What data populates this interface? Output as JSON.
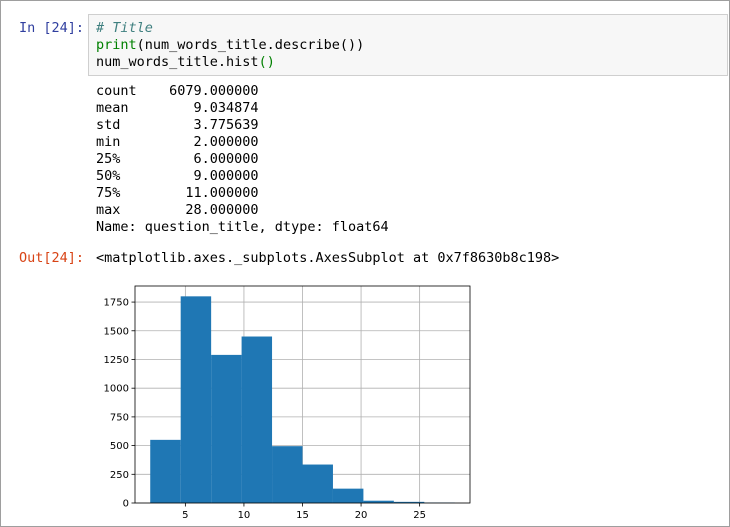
{
  "cell": {
    "prompt_in": "In [24]:",
    "code": [
      [
        "# Title"
      ],
      [
        "print",
        "(num_words_title.describe())"
      ],
      [
        "num_words_title.hist",
        "()"
      ]
    ],
    "output": [
      "count    6079.000000",
      "mean        9.034874",
      "std         3.775639",
      "min         2.000000",
      "25%         6.000000",
      "50%         9.000000",
      "75%        11.000000",
      "max        28.000000",
      "Name: question_title, dtype: float64"
    ],
    "prompt_out": "Out[24]:",
    "out_repr": "<matplotlib.axes._subplots.AxesSubplot at 0x7f8630b8c198>"
  },
  "chart_data": {
    "type": "histogram",
    "bins": [
      2,
      4.6,
      7.2,
      9.8,
      12.4,
      15,
      17.6,
      20.2,
      22.8,
      25.4,
      28
    ],
    "values": [
      550,
      1800,
      1290,
      1450,
      495,
      335,
      125,
      20,
      10,
      4
    ],
    "color": "#1f77b4",
    "xlim": [
      0.7,
      29.3
    ],
    "xticks": [
      5,
      10,
      15,
      20,
      25
    ],
    "ylim": [
      0,
      1890
    ],
    "yticks": [
      0,
      250,
      500,
      750,
      1000,
      1250,
      1500,
      1750
    ],
    "grid": true
  }
}
